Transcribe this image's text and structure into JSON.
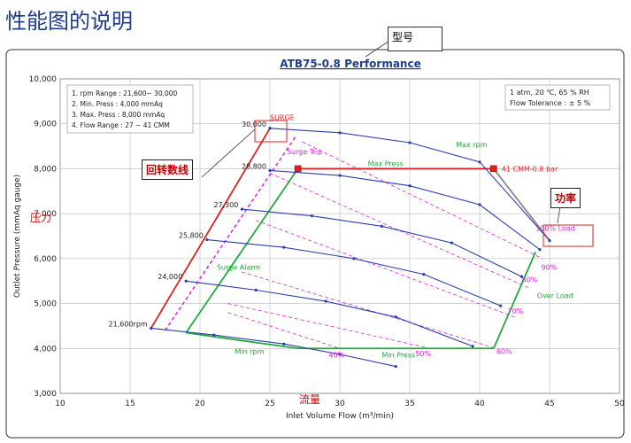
{
  "page": {
    "title": "性能图的说明",
    "annotations": {
      "model": "型号",
      "rpm_line": "回转数线",
      "power": "功率",
      "pressure": "压力",
      "flow": "流量"
    }
  },
  "chart_data": {
    "type": "line",
    "title": "ATB75-0.8  Performance",
    "xlabel": "Inlet Volume Flow (m³/min)",
    "ylabel": "Outlet Pressure (mmAq gauge)",
    "xlim": [
      10,
      50
    ],
    "ylim": [
      3000,
      10000
    ],
    "xticks": [
      10,
      15,
      20,
      25,
      30,
      35,
      40,
      45,
      50
    ],
    "yticks": [
      3000,
      4000,
      5000,
      6000,
      7000,
      8000,
      9000,
      10000
    ],
    "ytick_labels": [
      "3,000",
      "4,000",
      "5,000",
      "6,000",
      "7,000",
      "8,000",
      "9,000",
      "10,000"
    ],
    "grid": true,
    "spec_notes": [
      "1. rpm Range  : 21,600~ 30,000",
      "2. Min. Press   : 4,000 mmAq",
      "3. Max. Press   : 8,000 mmAq",
      "4. Flow Range : 27 ~ 41 CMM"
    ],
    "conditions": [
      "1 atm, 20 ℃, 65 % RH",
      "Flow Tolerance : ± 5 %"
    ],
    "series": [
      {
        "name": "30,000",
        "color": "#2b3fa8",
        "x": [
          25.0,
          30,
          35,
          40,
          45.0
        ],
        "y": [
          8900,
          8800,
          8580,
          8150,
          6400
        ]
      },
      {
        "name": "28,800",
        "color": "#2b3fa8",
        "x": [
          25.0,
          30,
          35,
          40,
          44.3
        ],
        "y": [
          7960,
          7850,
          7620,
          7200,
          6200
        ]
      },
      {
        "name": "27,300",
        "color": "#2b3fa8",
        "x": [
          23.0,
          28,
          33,
          38,
          43.0
        ],
        "y": [
          7100,
          6950,
          6720,
          6350,
          5600
        ]
      },
      {
        "name": "25,800",
        "color": "#2b3fa8",
        "x": [
          20.5,
          26,
          31,
          36,
          41.5
        ],
        "y": [
          6420,
          6250,
          6000,
          5650,
          4950
        ]
      },
      {
        "name": "24,000",
        "color": "#2b3fa8",
        "x": [
          19.0,
          24,
          29,
          34,
          39.5
        ],
        "y": [
          5500,
          5300,
          5050,
          4700,
          4050
        ]
      },
      {
        "name": "21,600rpm",
        "color": "#2b3fa8",
        "x": [
          16.5,
          21,
          26,
          30,
          34.0
        ],
        "y": [
          4450,
          4300,
          4100,
          3870,
          3600
        ]
      }
    ],
    "boundaries": {
      "surge": {
        "label": "SURGE",
        "color": "#e02020",
        "x": [
          16.5,
          25.0
        ],
        "y": [
          4450,
          8900
        ]
      },
      "surge_trip": {
        "label": "Surge Trip",
        "color": "#e020e0",
        "x": [
          17.5,
          26.8
        ],
        "y": [
          4400,
          8700
        ]
      },
      "surge_alarm": {
        "label": "Surge Alarm",
        "color": "#1faa3c",
        "x": [
          19.0,
          27.0
        ],
        "y": [
          4350,
          8000
        ]
      },
      "max_press": {
        "label": "Max Press",
        "color": "#1faa3c",
        "x": [
          27.0,
          41.0
        ],
        "y": [
          8000,
          8000
        ]
      },
      "max_rpm": {
        "label": "Max rpm",
        "color": "#1faa3c"
      },
      "min_rpm": {
        "label": "Min rpm",
        "color": "#1faa3c",
        "x": [
          19.0,
          27.0
        ],
        "y": [
          4350,
          4000
        ]
      },
      "min_press": {
        "label": "Min Press",
        "color": "#1faa3c",
        "x": [
          27.0,
          41.0
        ],
        "y": [
          4000,
          4000
        ]
      },
      "over_load": {
        "label": "Over Load",
        "color": "#1faa3c",
        "x": [
          41.0,
          44.0
        ],
        "y": [
          4000,
          6150
        ]
      },
      "load_line": {
        "label": "100% Load",
        "color": "#888888",
        "x": [
          41.0,
          45.0
        ],
        "y": [
          8000,
          6400
        ]
      }
    },
    "operating_point": {
      "label": "41 CMM-0.8 bar",
      "x": 41.0,
      "y": 8000
    },
    "surge_point": {
      "x": 27.0,
      "y": 8000
    },
    "load_lines": [
      {
        "label": "90%",
        "x": [
          27.3,
          44.5
        ],
        "y": [
          8600,
          6000
        ]
      },
      {
        "label": "80%",
        "x": [
          25.0,
          43.5
        ],
        "y": [
          7900,
          5350
        ]
      },
      {
        "label": "70%",
        "x": [
          24.0,
          42.5
        ],
        "y": [
          6850,
          4700
        ]
      },
      {
        "label": "60%",
        "x": [
          23.0,
          41.2
        ],
        "y": [
          5700,
          4000
        ]
      },
      {
        "label": "50%",
        "x": [
          22.0,
          36.5
        ],
        "y": [
          5000,
          4000
        ]
      },
      {
        "label": "40%",
        "x": [
          22.0,
          30.0
        ],
        "y": [
          4800,
          4000
        ]
      }
    ]
  }
}
